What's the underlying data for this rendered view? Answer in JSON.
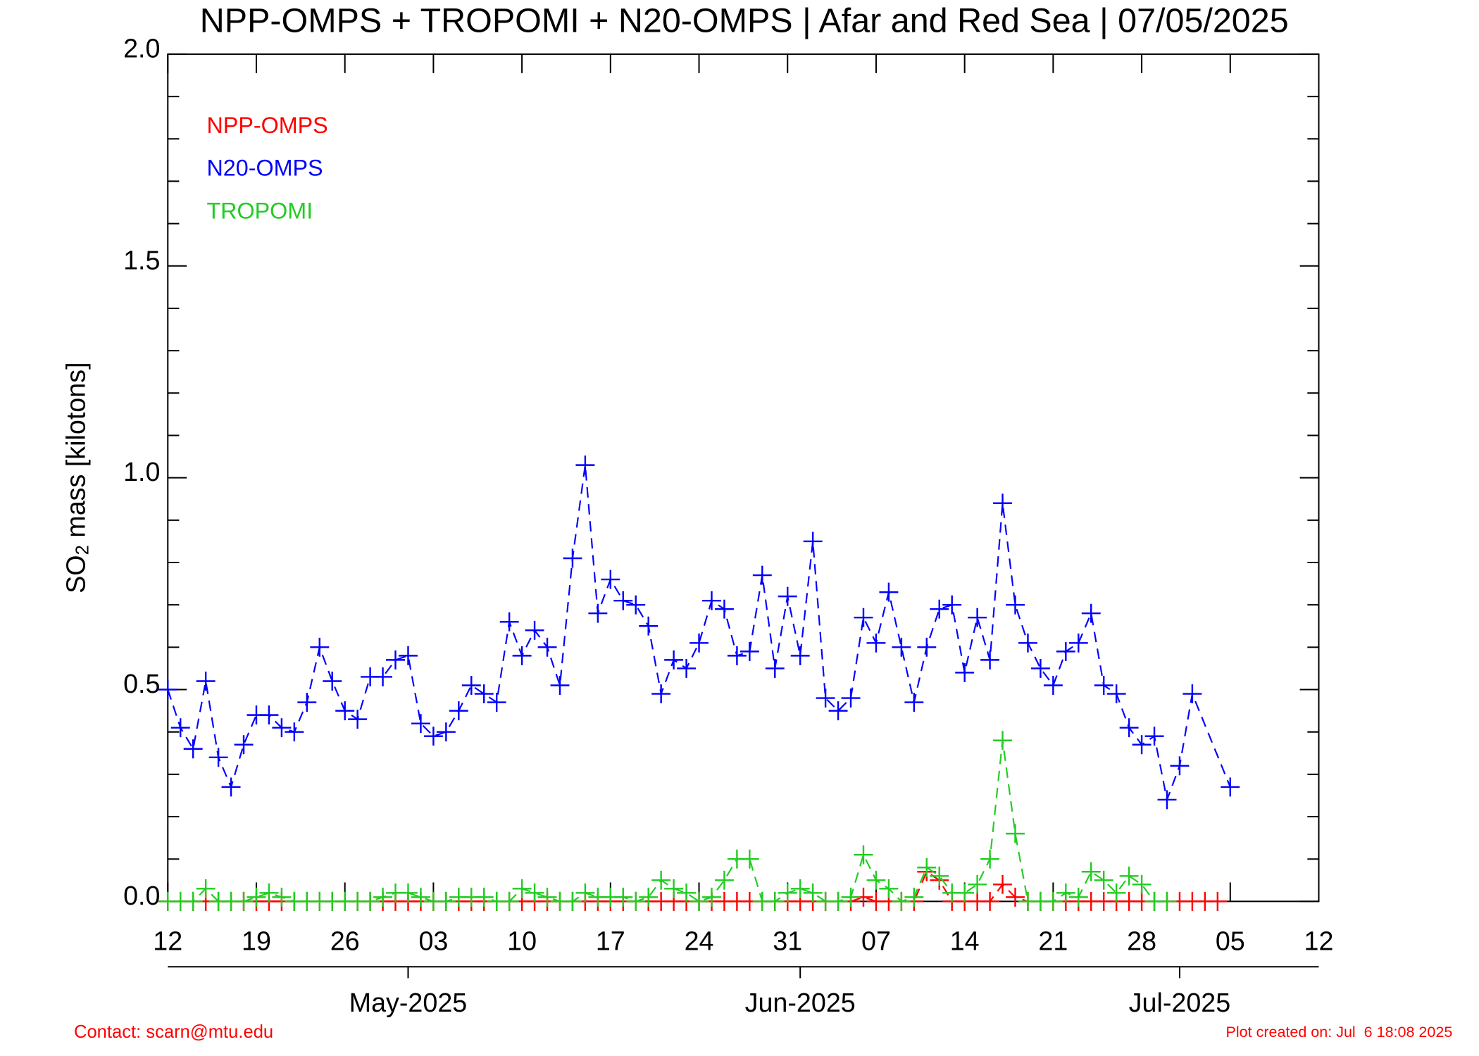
{
  "chart_data": {
    "type": "line",
    "title": "NPP-OMPS + TROPOMI + N20-OMPS | Afar and Red Sea | 07/05/2025",
    "ylabel": [
      "SO",
      "2",
      " mass [kilotons]"
    ],
    "xlim": [
      "2025-04-12",
      "2025-07-12"
    ],
    "xticks": [
      {
        "value": "2025-04-12",
        "label": "12"
      },
      {
        "value": "2025-04-19",
        "label": "19"
      },
      {
        "value": "2025-04-26",
        "label": "26"
      },
      {
        "value": "2025-05-03",
        "label": "03"
      },
      {
        "value": "2025-05-10",
        "label": "10"
      },
      {
        "value": "2025-05-17",
        "label": "17"
      },
      {
        "value": "2025-05-24",
        "label": "24"
      },
      {
        "value": "2025-05-31",
        "label": "31"
      },
      {
        "value": "2025-06-07",
        "label": "07"
      },
      {
        "value": "2025-06-14",
        "label": "14"
      },
      {
        "value": "2025-06-21",
        "label": "21"
      },
      {
        "value": "2025-06-28",
        "label": "28"
      },
      {
        "value": "2025-07-05",
        "label": "05"
      },
      {
        "value": "2025-07-12",
        "label": "12"
      }
    ],
    "monthticks": [
      {
        "value": "2025-05-01",
        "label": "May-2025"
      },
      {
        "value": "2025-06-01",
        "label": "Jun-2025"
      },
      {
        "value": "2025-07-01",
        "label": "Jul-2025"
      }
    ],
    "ylim": [
      0,
      2
    ],
    "yticks": [
      {
        "value": 0,
        "label": "0.0"
      },
      {
        "value": 0.5,
        "label": "0.5"
      },
      {
        "value": 1,
        "label": "1.0"
      },
      {
        "value": 1.5,
        "label": "1.5"
      },
      {
        "value": 2,
        "label": "2.0"
      }
    ],
    "yminorticks": [
      0.1,
      0.2,
      0.3,
      0.4,
      0.6,
      0.7,
      0.8,
      0.9,
      1.1,
      1.2,
      1.3,
      1.4,
      1.6,
      1.7,
      1.8,
      1.9
    ],
    "legend": "upper left",
    "series": [
      {
        "name": "NPP-OMPS",
        "color": "#ff0000",
        "x": [
          "2025-04-12",
          "2025-04-13",
          "2025-04-14",
          "2025-04-15",
          "2025-04-16",
          "2025-04-17",
          "2025-04-18",
          "2025-04-19",
          "2025-04-20",
          "2025-04-21",
          "2025-04-22",
          "2025-04-23",
          "2025-04-24",
          "2025-04-25",
          "2025-04-26",
          "2025-04-27",
          "2025-04-28",
          "2025-04-29",
          "2025-04-30",
          "2025-05-01",
          "2025-05-02",
          "2025-05-03",
          "2025-05-04",
          "2025-05-05",
          "2025-05-06",
          "2025-05-07",
          "2025-05-08",
          "2025-05-09",
          "2025-05-10",
          "2025-05-11",
          "2025-05-12",
          "2025-05-13",
          "2025-05-14",
          "2025-05-15",
          "2025-05-16",
          "2025-05-17",
          "2025-05-18",
          "2025-05-19",
          "2025-05-20",
          "2025-05-21",
          "2025-05-22",
          "2025-05-23",
          "2025-05-24",
          "2025-05-25",
          "2025-05-26",
          "2025-05-27",
          "2025-05-28",
          "2025-05-29",
          "2025-05-30",
          "2025-05-31",
          "2025-06-01",
          "2025-06-02",
          "2025-06-03",
          "2025-06-04",
          "2025-06-05",
          "2025-06-06",
          "2025-06-07",
          "2025-06-08",
          "2025-06-09",
          "2025-06-10",
          "2025-06-11",
          "2025-06-12",
          "2025-06-13",
          "2025-06-14",
          "2025-06-15",
          "2025-06-16",
          "2025-06-17",
          "2025-06-18",
          "2025-06-19",
          "2025-06-20",
          "2025-06-21",
          "2025-06-22",
          "2025-06-23",
          "2025-06-24",
          "2025-06-25",
          "2025-06-26",
          "2025-06-27",
          "2025-06-28",
          "2025-06-29",
          "2025-06-30",
          "2025-07-01",
          "2025-07-02",
          "2025-07-03",
          "2025-07-04"
        ],
        "values": [
          0,
          0,
          0,
          0,
          0,
          0,
          0,
          0,
          0,
          0,
          0,
          0,
          0,
          0,
          0,
          0,
          0,
          0,
          0,
          0,
          0,
          0,
          0,
          0,
          0,
          0,
          0,
          0,
          0,
          0,
          0,
          0,
          0,
          0,
          0,
          0,
          0,
          0,
          0,
          0,
          0,
          0,
          0,
          0,
          0,
          0,
          0,
          0,
          0,
          0,
          0,
          0,
          0,
          0,
          0,
          0.01,
          0,
          0,
          0,
          0,
          0.07,
          0.05,
          0,
          0,
          0,
          0,
          0.04,
          0.01,
          0,
          0,
          0,
          0,
          0,
          0,
          0,
          0,
          0,
          0,
          0,
          0,
          0,
          0,
          0,
          0
        ]
      },
      {
        "name": "N20-OMPS",
        "color": "#0000ff",
        "x": [
          "2025-04-12",
          "2025-04-13",
          "2025-04-14",
          "2025-04-15",
          "2025-04-16",
          "2025-04-17",
          "2025-04-18",
          "2025-04-19",
          "2025-04-20",
          "2025-04-21",
          "2025-04-22",
          "2025-04-23",
          "2025-04-24",
          "2025-04-25",
          "2025-04-26",
          "2025-04-27",
          "2025-04-28",
          "2025-04-29",
          "2025-04-30",
          "2025-05-01",
          "2025-05-02",
          "2025-05-03",
          "2025-05-04",
          "2025-05-05",
          "2025-05-06",
          "2025-05-07",
          "2025-05-08",
          "2025-05-09",
          "2025-05-10",
          "2025-05-11",
          "2025-05-12",
          "2025-05-13",
          "2025-05-14",
          "2025-05-15",
          "2025-05-16",
          "2025-05-17",
          "2025-05-18",
          "2025-05-19",
          "2025-05-20",
          "2025-05-21",
          "2025-05-22",
          "2025-05-23",
          "2025-05-24",
          "2025-05-25",
          "2025-05-26",
          "2025-05-27",
          "2025-05-28",
          "2025-05-29",
          "2025-05-30",
          "2025-05-31",
          "2025-06-01",
          "2025-06-02",
          "2025-06-03",
          "2025-06-04",
          "2025-06-05",
          "2025-06-06",
          "2025-06-07",
          "2025-06-08",
          "2025-06-09",
          "2025-06-10",
          "2025-06-11",
          "2025-06-12",
          "2025-06-13",
          "2025-06-14",
          "2025-06-15",
          "2025-06-16",
          "2025-06-17",
          "2025-06-18",
          "2025-06-19",
          "2025-06-20",
          "2025-06-21",
          "2025-06-22",
          "2025-06-23",
          "2025-06-24",
          "2025-06-25",
          "2025-06-26",
          "2025-06-27",
          "2025-06-28",
          "2025-06-29",
          "2025-06-30",
          "2025-07-01",
          "2025-07-02",
          "2025-07-05"
        ],
        "values": [
          0.5,
          0.41,
          0.36,
          0.52,
          0.34,
          0.27,
          0.37,
          0.44,
          0.44,
          0.41,
          0.4,
          0.47,
          0.6,
          0.52,
          0.45,
          0.43,
          0.53,
          0.53,
          0.57,
          0.58,
          0.42,
          0.39,
          0.4,
          0.45,
          0.51,
          0.49,
          0.47,
          0.66,
          0.58,
          0.64,
          0.6,
          0.51,
          0.81,
          1.03,
          0.68,
          0.76,
          0.71,
          0.7,
          0.65,
          0.49,
          0.57,
          0.55,
          0.61,
          0.71,
          0.69,
          0.58,
          0.59,
          0.77,
          0.55,
          0.72,
          0.58,
          0.85,
          0.48,
          0.45,
          0.48,
          0.67,
          0.61,
          0.73,
          0.6,
          0.47,
          0.6,
          0.69,
          0.7,
          0.54,
          0.67,
          0.57,
          0.94,
          0.7,
          0.61,
          0.55,
          0.51,
          0.59,
          0.61,
          0.68,
          0.51,
          0.49,
          0.41,
          0.37,
          0.39,
          0.24,
          0.32,
          0.49,
          0.27
        ]
      },
      {
        "name": "TROPOMI",
        "color": "#22cc22",
        "x": [
          "2025-04-12",
          "2025-04-13",
          "2025-04-14",
          "2025-04-15",
          "2025-04-16",
          "2025-04-17",
          "2025-04-18",
          "2025-04-19",
          "2025-04-20",
          "2025-04-21",
          "2025-04-22",
          "2025-04-23",
          "2025-04-24",
          "2025-04-25",
          "2025-04-26",
          "2025-04-27",
          "2025-04-28",
          "2025-04-29",
          "2025-04-30",
          "2025-05-01",
          "2025-05-02",
          "2025-05-03",
          "2025-05-04",
          "2025-05-05",
          "2025-05-06",
          "2025-05-07",
          "2025-05-08",
          "2025-05-09",
          "2025-05-10",
          "2025-05-11",
          "2025-05-12",
          "2025-05-13",
          "2025-05-14",
          "2025-05-15",
          "2025-05-16",
          "2025-05-17",
          "2025-05-18",
          "2025-05-19",
          "2025-05-20",
          "2025-05-21",
          "2025-05-22",
          "2025-05-23",
          "2025-05-24",
          "2025-05-25",
          "2025-05-26",
          "2025-05-27",
          "2025-05-28",
          "2025-05-29",
          "2025-05-30",
          "2025-05-31",
          "2025-06-01",
          "2025-06-02",
          "2025-06-03",
          "2025-06-04",
          "2025-06-05",
          "2025-06-06",
          "2025-06-07",
          "2025-06-08",
          "2025-06-09",
          "2025-06-10",
          "2025-06-11",
          "2025-06-12",
          "2025-06-13",
          "2025-06-14",
          "2025-06-15",
          "2025-06-16",
          "2025-06-17",
          "2025-06-18",
          "2025-06-19",
          "2025-06-20",
          "2025-06-21",
          "2025-06-22",
          "2025-06-23",
          "2025-06-24",
          "2025-06-25",
          "2025-06-26",
          "2025-06-27",
          "2025-06-28",
          "2025-06-29",
          "2025-06-30"
        ],
        "values": [
          0,
          0,
          0,
          0.03,
          0,
          0,
          0,
          0.01,
          0.02,
          0.01,
          0,
          0,
          0,
          0,
          0,
          0,
          0,
          0.01,
          0.02,
          0.02,
          0.01,
          0,
          0,
          0.01,
          0.01,
          0.01,
          0,
          0,
          0.03,
          0.02,
          0.01,
          0,
          0,
          0.02,
          0.01,
          0.01,
          0.01,
          0,
          0.01,
          0.05,
          0.03,
          0.02,
          0,
          0.01,
          0.05,
          0.1,
          0.1,
          0,
          0,
          0.02,
          0.03,
          0.02,
          0,
          0,
          0.01,
          0.11,
          0.05,
          0.03,
          0,
          0.01,
          0.08,
          0.06,
          0.02,
          0.02,
          0.04,
          0.1,
          0.38,
          0.16,
          0,
          0,
          0,
          0.02,
          0.01,
          0.07,
          0.05,
          0.02,
          0.06,
          0.04,
          0,
          0
        ]
      }
    ],
    "contact": "Contact: scarn@mtu.edu",
    "created": "Plot created on: Jul  6 18:08 2025"
  }
}
